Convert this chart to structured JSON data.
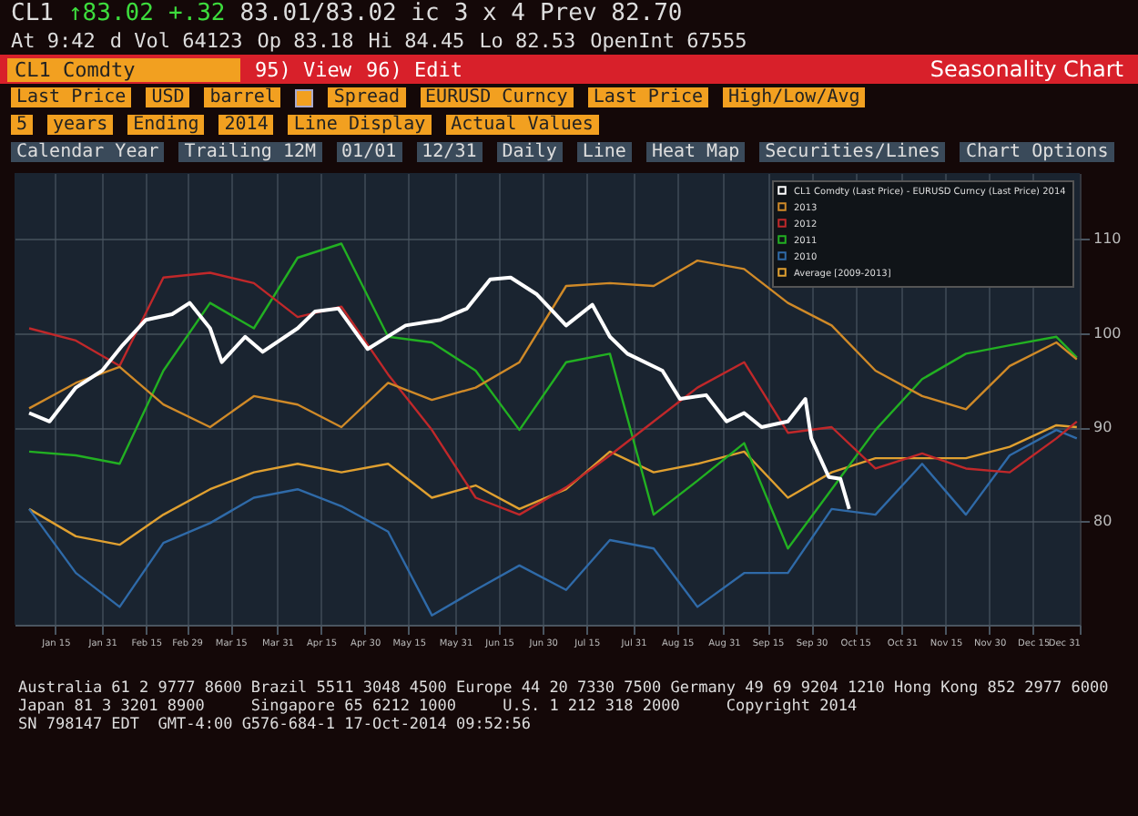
{
  "chart_data": {
    "type": "line",
    "title": "Seasonality Chart",
    "annotations": [
      "CL1",
      "↑83.02",
      "+.32",
      "83.01/83.02 ic",
      "3 x 4",
      "Prev 82.70",
      "At 9:42",
      "d Vol 64123",
      "Op 83.18",
      "Hi 84.45",
      "Lo 82.53",
      "OpenInt 67555",
      "CL1 Comdty",
      "95) View",
      "96) Edit",
      "Last Price",
      "USD",
      "barrel",
      "Spread",
      "EURUSD Curncy",
      "Last Price",
      "High/Low/Avg",
      "5",
      "years",
      "Ending",
      "2014",
      "Line Display",
      "Actual Values",
      "Calendar Year",
      "Trailing 12M",
      "01/01",
      "12/31",
      "Daily",
      "Line",
      "Heat Map",
      "Securities/Lines",
      "Chart Options",
      "Australia 61 2 9777 8600 Brazil 5511 3048 4500 Europe 44 20 7330 7500 Germany 49 69 9204 1210 Hong Kong 852 2977 6000",
      "Japan 81 3 3201 8900     Singapore 65 6212 1000     U.S. 1 212 318 2000     Copyright 2014",
      "SN 798147 EDT  GMT-4:00 G576-684-1 17-Oct-2014 09:52:56"
    ],
    "x": [
      "--01-06",
      "--01-22",
      "--02-06",
      "--02-21",
      "--03-08",
      "--03-23",
      "--04-07",
      "--04-22",
      "--05-08",
      "--05-23",
      "--06-07",
      "--06-22",
      "--07-08",
      "--07-23",
      "--08-07",
      "--08-22",
      "--09-07",
      "--09-22",
      "--10-07",
      "--10-22",
      "--11-07",
      "--11-22",
      "--12-07",
      "--12-23",
      "--12-30"
    ],
    "series": [
      {
        "name": "CL1 Comdty (Last Price) - EURUSD Curncy (Last Price) 2014",
        "color": "#ffffff",
        "x": [
          "--01-06",
          "--01-13",
          "--01-22",
          "--01-31",
          "--02-07",
          "--02-15",
          "--02-24",
          "--03-01",
          "--03-08",
          "--03-12",
          "--03-20",
          "--03-26",
          "--04-07",
          "--04-13",
          "--04-21",
          "--05-01",
          "--05-14",
          "--05-26",
          "--06-04",
          "--06-12",
          "--06-19",
          "--06-28",
          "--07-08",
          "--07-17",
          "--07-23",
          "--07-29",
          "--08-10",
          "--08-16",
          "--08-25",
          "--09-01",
          "--09-07",
          "--09-13",
          "--09-22",
          "--09-28",
          "--09-30",
          "--10-06",
          "--10-10",
          "--10-13"
        ],
        "values": [
          91.5,
          90.6,
          94.2,
          96,
          98.7,
          101.4,
          102,
          103.2,
          100.5,
          96.9,
          99.6,
          98,
          100.5,
          102.3,
          102.6,
          98.3,
          100.8,
          101.4,
          102.6,
          105.7,
          105.9,
          104.1,
          100.8,
          103,
          99.6,
          97.8,
          96,
          93,
          93.4,
          90.6,
          91.5,
          90,
          90.6,
          93,
          88.8,
          84.7,
          84.5,
          81.3
        ]
      },
      {
        "name": "2013",
        "color": "#d08a28",
        "values": [
          92,
          94.7,
          96.4,
          92.4,
          90,
          93.3,
          92.4,
          90,
          94.7,
          92.9,
          94.2,
          96.9,
          105,
          105.3,
          105,
          107.7,
          106.8,
          103.2,
          100.8,
          96,
          93.3,
          91.9,
          96.5,
          99,
          97.2
        ]
      },
      {
        "name": "2012",
        "color": "#c0282a",
        "values": [
          100.5,
          99.2,
          96.5,
          105.9,
          106.4,
          105.3,
          101.7,
          102.8,
          95.6,
          89.7,
          82.5,
          80.7,
          83.6,
          87,
          90.6,
          94.2,
          96.9,
          89.4,
          90,
          85.6,
          87.2,
          85.6,
          85.2,
          88.8,
          90.6
        ]
      },
      {
        "name": "2011",
        "color": "#22b022",
        "values": [
          87.4,
          87,
          86.1,
          96,
          103.2,
          100.5,
          108,
          109.5,
          99.6,
          99,
          96,
          89.7,
          96.9,
          97.8,
          80.7,
          84.3,
          88.3,
          77.1,
          83.4,
          89.7,
          95.1,
          97.8,
          98.7,
          99.6,
          97.4
        ]
      },
      {
        "name": "2010",
        "color": "#2f6aa8",
        "values": [
          81.3,
          74.5,
          70.9,
          77.7,
          79.8,
          82.5,
          83.4,
          81.6,
          78.9,
          70,
          72.7,
          75.3,
          72.7,
          78,
          77.1,
          70.9,
          74.5,
          74.5,
          81.3,
          80.7,
          86.1,
          80.7,
          87,
          89.7,
          88.8
        ]
      },
      {
        "name": "Average [2009-2013]",
        "color": "#e0a030",
        "values": [
          81.3,
          78.4,
          77.5,
          80.7,
          83.4,
          85.2,
          86.1,
          85.2,
          86.1,
          82.5,
          83.8,
          81.3,
          83.4,
          87.4,
          85.2,
          86.1,
          87.4,
          82.5,
          85.2,
          86.7,
          86.7,
          86.7,
          87.9,
          90.2,
          90
        ]
      }
    ],
    "xlim": [
      "--01-01",
      "--12-31"
    ],
    "xticks": [
      {
        "value": "--01-15",
        "label": "Jan 15"
      },
      {
        "value": "--01-31",
        "label": "Jan 31"
      },
      {
        "value": "--02-15",
        "label": "Feb 15"
      },
      {
        "value": "--02-29",
        "label": "Feb 29"
      },
      {
        "value": "--03-15",
        "label": "Mar 15"
      },
      {
        "value": "--03-31",
        "label": "Mar 31"
      },
      {
        "value": "--04-15",
        "label": "Apr 15"
      },
      {
        "value": "--04-30",
        "label": "Apr 30"
      },
      {
        "value": "--05-15",
        "label": "May 15"
      },
      {
        "value": "--05-31",
        "label": "May 31"
      },
      {
        "value": "--06-15",
        "label": "Jun 15"
      },
      {
        "value": "--06-30",
        "label": "Jun 30"
      },
      {
        "value": "--07-15",
        "label": "Jul 15"
      },
      {
        "value": "--07-31",
        "label": "Jul 31"
      },
      {
        "value": "--08-15",
        "label": "Aug 15"
      },
      {
        "value": "--08-31",
        "label": "Aug 31"
      },
      {
        "value": "--09-15",
        "label": "Sep 15"
      },
      {
        "value": "--09-30",
        "label": "Sep 30"
      },
      {
        "value": "--10-15",
        "label": "Oct 15"
      },
      {
        "value": "--10-31",
        "label": "Oct 31"
      },
      {
        "value": "--11-15",
        "label": "Nov 15"
      },
      {
        "value": "--11-30",
        "label": "Nov 30"
      },
      {
        "value": "--12-15",
        "label": "Dec 15"
      },
      {
        "value": "--12-31",
        "label": "Dec 31"
      }
    ],
    "ylim": [
      69,
      117
    ],
    "yticks": [
      80,
      90,
      100,
      110
    ],
    "grid": true,
    "legend": "top right"
  }
}
